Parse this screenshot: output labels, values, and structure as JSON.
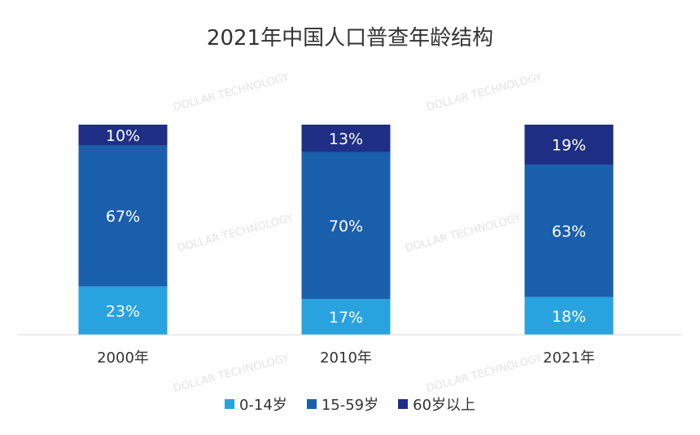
{
  "chart_data": {
    "type": "bar",
    "stacked": true,
    "title": "2021年中国人口普查年龄结构",
    "categories": [
      "2000年",
      "2010年",
      "2021年"
    ],
    "series": [
      {
        "name": "0-14岁",
        "values": [
          23,
          17,
          18
        ],
        "labels": [
          "23%",
          "17%",
          "18%"
        ],
        "color": "#29a3e0"
      },
      {
        "name": "15-59岁",
        "values": [
          67,
          70,
          63
        ],
        "labels": [
          "67%",
          "70%",
          "63%"
        ],
        "color": "#1a5fab"
      },
      {
        "name": "60岁以上",
        "values": [
          10,
          13,
          19
        ],
        "labels": [
          "10%",
          "13%",
          "19%"
        ],
        "color": "#1f2f86"
      }
    ],
    "ylim": [
      0,
      100
    ],
    "grid": false,
    "legend_position": "bottom",
    "watermark": "DOLLAR TECHNOLOGY"
  }
}
